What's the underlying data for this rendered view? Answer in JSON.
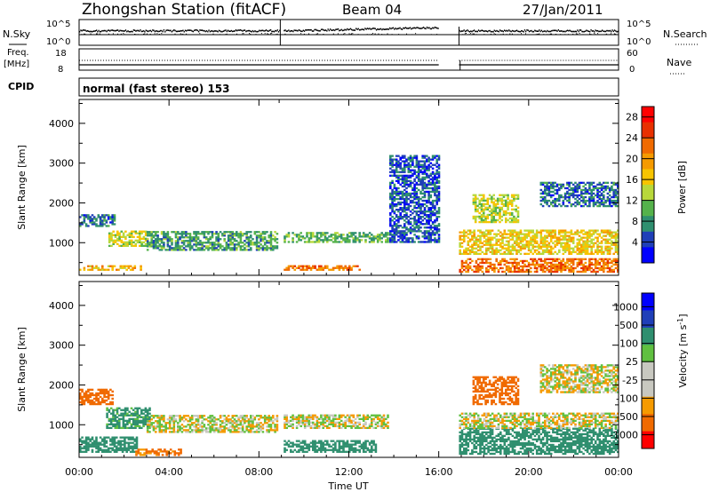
{
  "header": {
    "station": "Zhongshan Station (fitACF)",
    "beam": "Beam 04",
    "date": "27/Jan/2011"
  },
  "top_panels": {
    "nsky_label": "N.Sky",
    "nsky_ticks": [
      "10^5",
      "10^0"
    ],
    "nsearch_label": "N.Search",
    "nsearch_ticks": [
      "10^5",
      "10^0"
    ],
    "freq_label": "Freq.",
    "freq_unit": "[MHz]",
    "freq_ticks": [
      "18",
      "8"
    ],
    "nave_label": "Nave",
    "nave_ticks": [
      "60",
      "0"
    ],
    "cpid_label": "CPID",
    "cpid_text": "normal (fast stereo) 153"
  },
  "colors": {
    "power_bar": [
      "#0000ff",
      "#1f3fb8",
      "#2f8f6f",
      "#55b24b",
      "#b8d83a",
      "#f7c400",
      "#f59a00",
      "#f06a00",
      "#e83000",
      "#ff0000"
    ],
    "velocity_bar": [
      "#ff0000",
      "#f06a00",
      "#f59a00",
      "#c8c8c0",
      "#c8c8c0",
      "#60c040",
      "#2f8f6f",
      "#1f3fb8",
      "#0000ff"
    ]
  },
  "chart_data": [
    {
      "type": "heatmap",
      "title": "",
      "ylabel": "Slant Range [km]",
      "xlabel": "",
      "ylim": [
        180,
        4600
      ],
      "y_ticks": [
        "1000",
        "2000",
        "3000",
        "4000"
      ],
      "x_ticks": [
        "00:00",
        "04:00",
        "08:00",
        "12:00",
        "16:00",
        "20:00",
        "00:00"
      ],
      "colorbar_label": "Power [dB]",
      "colorbar_ticks": [
        "4",
        "8",
        "12",
        "16",
        "20",
        "24",
        "28"
      ],
      "colorbar_range": [
        0,
        30
      ],
      "data_gaps_hours": [
        [
          8.9,
          9.05
        ],
        [
          16.0,
          16.9
        ]
      ],
      "echo_regions": [
        {
          "t": [
            0.0,
            2.7
          ],
          "r": [
            300,
            420
          ],
          "db": 18
        },
        {
          "t": [
            0.0,
            1.6
          ],
          "r": [
            1400,
            1700
          ],
          "db": 6
        },
        {
          "t": [
            1.3,
            3.0
          ],
          "r": [
            900,
            1300
          ],
          "db": 14
        },
        {
          "t": [
            3.0,
            8.8
          ],
          "r": [
            800,
            1280
          ],
          "db": 9
        },
        {
          "t": [
            9.1,
            12.5
          ],
          "r": [
            300,
            430
          ],
          "db": 22
        },
        {
          "t": [
            9.1,
            13.7
          ],
          "r": [
            1000,
            1250
          ],
          "db": 10
        },
        {
          "t": [
            13.8,
            16.0
          ],
          "r": [
            1000,
            3200
          ],
          "db": 5
        },
        {
          "t": [
            16.9,
            24.0
          ],
          "r": [
            250,
            600
          ],
          "db": 22
        },
        {
          "t": [
            16.9,
            24.0
          ],
          "r": [
            700,
            1300
          ],
          "db": 16
        },
        {
          "t": [
            17.5,
            19.5
          ],
          "r": [
            1500,
            2200
          ],
          "db": 14
        },
        {
          "t": [
            20.5,
            24.0
          ],
          "r": [
            1900,
            2500
          ],
          "db": 6
        }
      ]
    },
    {
      "type": "heatmap",
      "title": "",
      "ylabel": "Slant Range [km]",
      "xlabel": "Time UT",
      "ylim": [
        180,
        4600
      ],
      "y_ticks": [
        "1000",
        "2000",
        "3000",
        "4000"
      ],
      "x_ticks": [
        "00:00",
        "04:00",
        "08:00",
        "12:00",
        "16:00",
        "20:00",
        "00:00"
      ],
      "colorbar_label": "Velocity [m s^-1]",
      "colorbar_ticks": [
        "1000",
        "500",
        "100",
        "25",
        "-25",
        "-100",
        "-500",
        "-1000"
      ],
      "data_gaps_hours": [
        [
          8.9,
          9.05
        ],
        [
          16.0,
          16.9
        ]
      ],
      "echo_regions": [
        {
          "t": [
            0.0,
            2.6
          ],
          "r": [
            300,
            700
          ],
          "v": 250
        },
        {
          "t": [
            0.0,
            1.5
          ],
          "r": [
            1500,
            1900
          ],
          "v": -200
        },
        {
          "t": [
            1.2,
            3.1
          ],
          "r": [
            900,
            1400
          ],
          "v": 150
        },
        {
          "t": [
            3.0,
            8.8
          ],
          "r": [
            800,
            1250
          ],
          "v": 0
        },
        {
          "t": [
            2.5,
            4.5
          ],
          "r": [
            220,
            400
          ],
          "v": -150
        },
        {
          "t": [
            9.1,
            13.2
          ],
          "r": [
            300,
            600
          ],
          "v": 300
        },
        {
          "t": [
            9.1,
            13.7
          ],
          "r": [
            900,
            1250
          ],
          "v": 0
        },
        {
          "t": [
            16.9,
            24.0
          ],
          "r": [
            250,
            900
          ],
          "v": 200
        },
        {
          "t": [
            16.9,
            24.0
          ],
          "r": [
            900,
            1300
          ],
          "v": 0
        },
        {
          "t": [
            17.5,
            19.5
          ],
          "r": [
            1500,
            2200
          ],
          "v": -200
        },
        {
          "t": [
            20.5,
            24.0
          ],
          "r": [
            1800,
            2500
          ],
          "v": 0
        }
      ]
    }
  ]
}
